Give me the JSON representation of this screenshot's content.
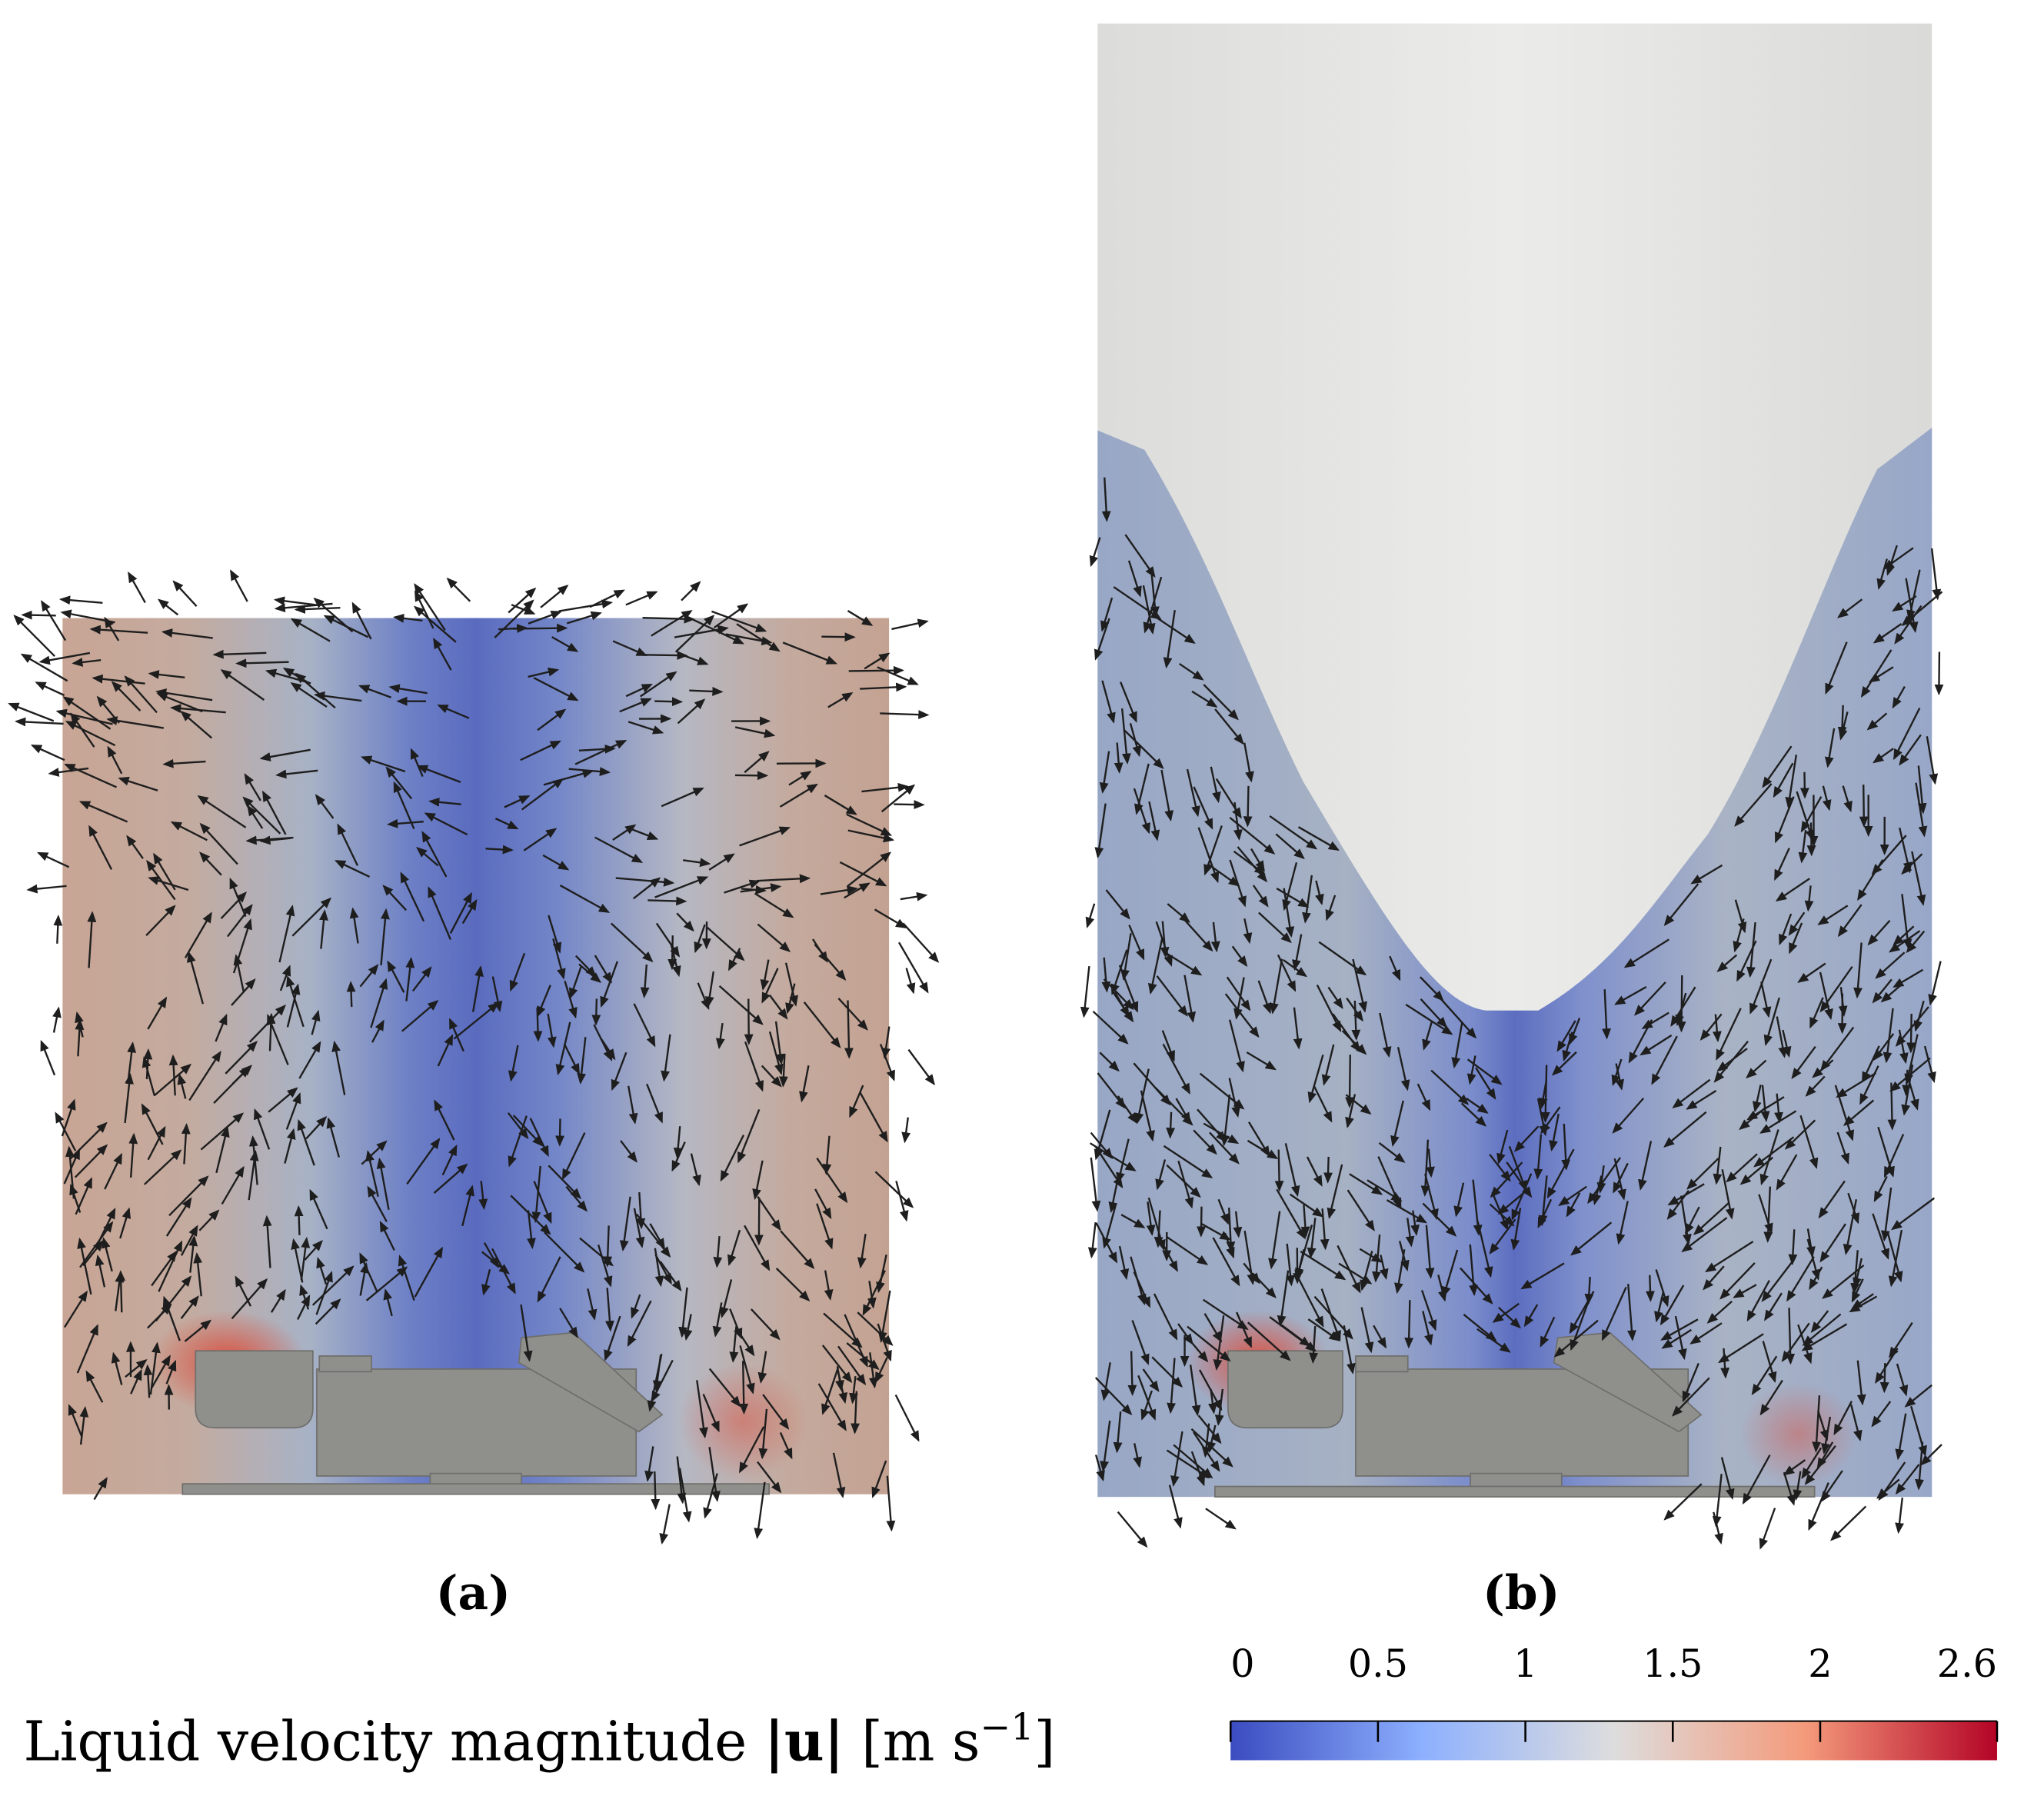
{
  "panels": [
    {
      "label": "(a)"
    },
    {
      "label": "(b)"
    }
  ],
  "colorbar": {
    "label": "Liquid velocity magnitude",
    "quantity": "|u|",
    "units": [
      "[m s",
      "−1",
      "]"
    ],
    "lim": [
      0,
      2.6
    ],
    "ticks": [
      0,
      0.5,
      1,
      1.5,
      2,
      2.6
    ]
  }
}
